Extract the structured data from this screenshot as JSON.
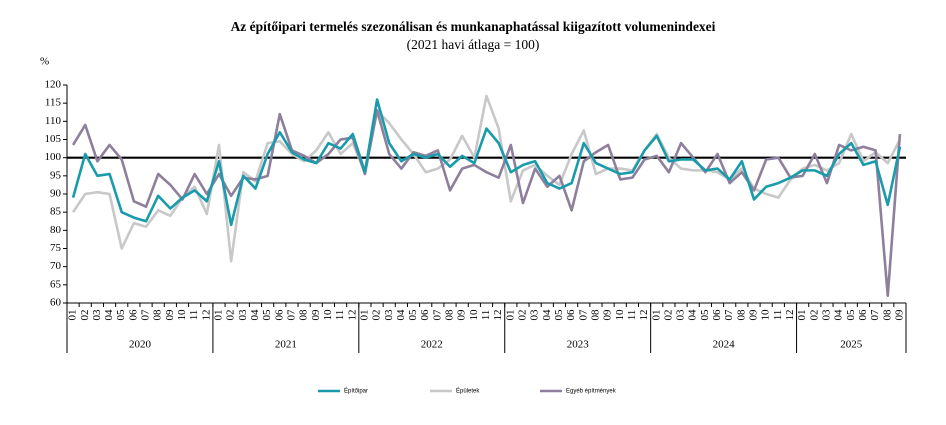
{
  "chart_data": {
    "type": "line",
    "title": "Az építőipari termelés szezonálisan és munkanaphatással kiigazított volumenindexei",
    "subtitle": "(2021 havi átlaga = 100)",
    "y_label": "%",
    "categories": [
      "01",
      "02",
      "03",
      "04",
      "05",
      "06",
      "07",
      "08",
      "09",
      "10",
      "11",
      "12",
      "01",
      "02",
      "03",
      "04",
      "05",
      "06",
      "07",
      "08",
      "09",
      "10",
      "11",
      "12",
      "01",
      "02",
      "03",
      "04",
      "05",
      "06",
      "07",
      "08",
      "09",
      "10",
      "11",
      "12",
      "01",
      "02",
      "03",
      "04",
      "05",
      "06",
      "07",
      "08",
      "09",
      "10",
      "11",
      "12",
      "01",
      "02",
      "03",
      "04",
      "05",
      "06",
      "07",
      "08",
      "09",
      "10",
      "11",
      "12",
      "01",
      "02",
      "03",
      "04",
      "05",
      "06",
      "07",
      "08",
      "09"
    ],
    "years": [
      "2020",
      "2021",
      "2022",
      "2023",
      "2024",
      "2025"
    ],
    "reference_line": 100,
    "ylim": [
      60,
      120
    ],
    "yticks": [
      60,
      65,
      70,
      75,
      80,
      85,
      90,
      95,
      100,
      105,
      110,
      115,
      120
    ],
    "series": [
      {
        "name": "Épületek",
        "color": "#c8c8c8",
        "values": [
          85,
          90,
          90.5,
          90,
          75,
          82,
          81,
          85.5,
          84,
          89,
          92,
          84.5,
          103.5,
          71.5,
          96,
          93.5,
          104,
          104.5,
          101,
          99,
          102,
          107,
          101,
          104,
          96,
          113,
          109.5,
          105,
          101,
          96,
          97,
          99.5,
          106,
          100,
          117,
          108,
          88,
          96.5,
          98,
          95,
          92.5,
          101,
          107.5,
          95.5,
          97,
          97,
          96.5,
          102,
          106.5,
          100,
          97,
          96.5,
          96.5,
          96,
          94,
          97,
          91.5,
          90,
          89,
          94,
          97,
          98,
          96.5,
          98.5,
          106.5,
          99,
          101.5,
          98.5,
          105
        ]
      },
      {
        "name": "Egyéb építmények",
        "color": "#8e7f9c",
        "values": [
          103.5,
          109,
          99,
          103.5,
          99.5,
          88,
          86.5,
          95.5,
          92.5,
          88.5,
          95.5,
          90,
          95.5,
          89.5,
          94.5,
          94,
          95,
          112,
          102,
          100.5,
          98.5,
          101,
          105,
          105.5,
          95.5,
          113,
          101,
          97,
          101.5,
          100.5,
          102,
          91,
          97,
          98,
          96,
          94.5,
          103.5,
          87.5,
          97,
          92,
          95,
          85.5,
          99,
          101.5,
          103.5,
          94,
          94.5,
          99.5,
          100.5,
          96,
          104,
          100,
          96,
          101,
          93,
          96,
          91,
          99.5,
          100,
          94.5,
          95,
          101,
          93,
          103.5,
          102,
          103,
          102,
          62,
          106.5
        ]
      },
      {
        "name": "Építőipar",
        "color": "#1a9bab",
        "values": [
          89,
          101,
          95,
          95.5,
          85,
          83.5,
          82.5,
          89.5,
          86,
          89,
          91,
          88,
          99,
          81.5,
          95,
          91.5,
          101,
          107,
          101.5,
          99.5,
          98.5,
          104,
          102.5,
          106.5,
          96,
          116,
          104,
          99,
          101,
          100,
          101,
          97.5,
          100.5,
          98.5,
          108,
          104,
          96,
          98,
          99,
          93,
          91.5,
          93,
          104,
          98.5,
          97,
          95.5,
          96,
          102,
          106,
          99,
          99.5,
          99.5,
          96.5,
          97,
          94,
          99,
          88.5,
          92,
          93,
          94.5,
          96.5,
          96.5,
          95,
          101,
          104,
          98,
          99,
          87,
          103
        ]
      }
    ]
  }
}
